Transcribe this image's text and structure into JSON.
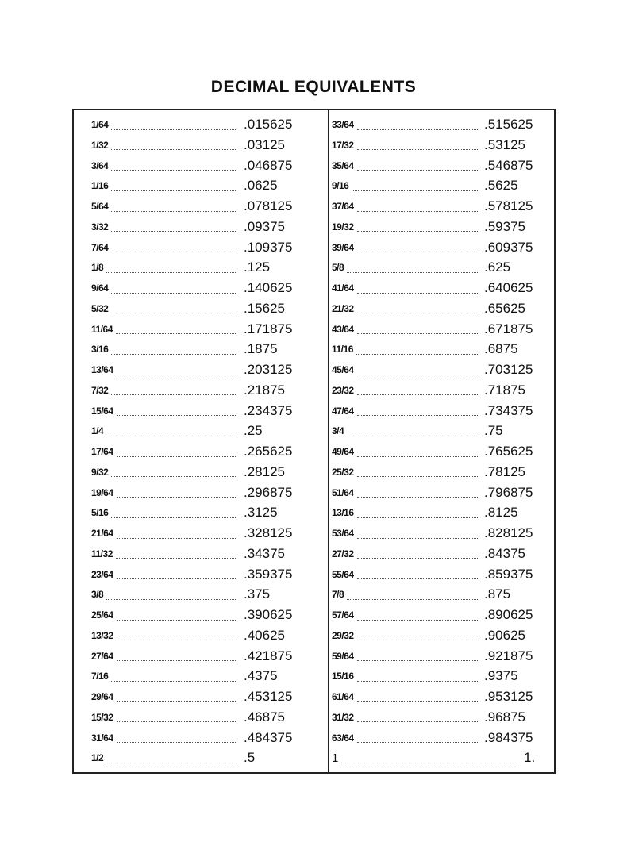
{
  "title": "DECIMAL EQUIVALENTS",
  "left": [
    {
      "fraction": "1/64",
      "decimal": ".015625"
    },
    {
      "fraction": "1/32",
      "decimal": ".03125"
    },
    {
      "fraction": "3/64",
      "decimal": ".046875"
    },
    {
      "fraction": "1/16",
      "decimal": ".0625"
    },
    {
      "fraction": "5/64",
      "decimal": ".078125"
    },
    {
      "fraction": "3/32",
      "decimal": ".09375"
    },
    {
      "fraction": "7/64",
      "decimal": ".109375"
    },
    {
      "fraction": "1/8",
      "decimal": ".125"
    },
    {
      "fraction": "9/64",
      "decimal": ".140625"
    },
    {
      "fraction": "5/32",
      "decimal": ".15625"
    },
    {
      "fraction": "11/64",
      "decimal": ".171875"
    },
    {
      "fraction": "3/16",
      "decimal": ".1875"
    },
    {
      "fraction": "13/64",
      "decimal": ".203125"
    },
    {
      "fraction": "7/32",
      "decimal": ".21875"
    },
    {
      "fraction": "15/64",
      "decimal": ".234375"
    },
    {
      "fraction": "1/4",
      "decimal": ".25"
    },
    {
      "fraction": "17/64",
      "decimal": ".265625"
    },
    {
      "fraction": "9/32",
      "decimal": ".28125"
    },
    {
      "fraction": "19/64",
      "decimal": ".296875"
    },
    {
      "fraction": "5/16",
      "decimal": ".3125"
    },
    {
      "fraction": "21/64",
      "decimal": ".328125"
    },
    {
      "fraction": "11/32",
      "decimal": ".34375"
    },
    {
      "fraction": "23/64",
      "decimal": ".359375"
    },
    {
      "fraction": "3/8",
      "decimal": ".375"
    },
    {
      "fraction": "25/64",
      "decimal": ".390625"
    },
    {
      "fraction": "13/32",
      "decimal": ".40625"
    },
    {
      "fraction": "27/64",
      "decimal": ".421875"
    },
    {
      "fraction": "7/16",
      "decimal": ".4375"
    },
    {
      "fraction": "29/64",
      "decimal": ".453125"
    },
    {
      "fraction": "15/32",
      "decimal": ".46875"
    },
    {
      "fraction": "31/64",
      "decimal": ".484375"
    },
    {
      "fraction": "1/2",
      "decimal": ".5"
    }
  ],
  "right": [
    {
      "fraction": "33/64",
      "decimal": ".515625"
    },
    {
      "fraction": "17/32",
      "decimal": ".53125"
    },
    {
      "fraction": "35/64",
      "decimal": ".546875"
    },
    {
      "fraction": "9/16",
      "decimal": ".5625"
    },
    {
      "fraction": "37/64",
      "decimal": ".578125"
    },
    {
      "fraction": "19/32",
      "decimal": ".59375"
    },
    {
      "fraction": "39/64",
      "decimal": ".609375"
    },
    {
      "fraction": "5/8",
      "decimal": ".625"
    },
    {
      "fraction": "41/64",
      "decimal": ".640625"
    },
    {
      "fraction": "21/32",
      "decimal": ".65625"
    },
    {
      "fraction": "43/64",
      "decimal": ".671875"
    },
    {
      "fraction": "11/16",
      "decimal": ".6875"
    },
    {
      "fraction": "45/64",
      "decimal": ".703125"
    },
    {
      "fraction": "23/32",
      "decimal": ".71875"
    },
    {
      "fraction": "47/64",
      "decimal": ".734375"
    },
    {
      "fraction": "3/4",
      "decimal": ".75"
    },
    {
      "fraction": "49/64",
      "decimal": ".765625"
    },
    {
      "fraction": "25/32",
      "decimal": ".78125"
    },
    {
      "fraction": "51/64",
      "decimal": ".796875"
    },
    {
      "fraction": "13/16",
      "decimal": ".8125"
    },
    {
      "fraction": "53/64",
      "decimal": ".828125"
    },
    {
      "fraction": "27/32",
      "decimal": ".84375"
    },
    {
      "fraction": "55/64",
      "decimal": ".859375"
    },
    {
      "fraction": "7/8",
      "decimal": ".875"
    },
    {
      "fraction": "57/64",
      "decimal": ".890625"
    },
    {
      "fraction": "29/32",
      "decimal": ".90625"
    },
    {
      "fraction": "59/64",
      "decimal": ".921875"
    },
    {
      "fraction": "15/16",
      "decimal": ".9375"
    },
    {
      "fraction": "61/64",
      "decimal": ".953125"
    },
    {
      "fraction": "31/32",
      "decimal": ".96875"
    },
    {
      "fraction": "63/64",
      "decimal": ".984375"
    },
    {
      "fraction": "1",
      "decimal": "1."
    }
  ]
}
